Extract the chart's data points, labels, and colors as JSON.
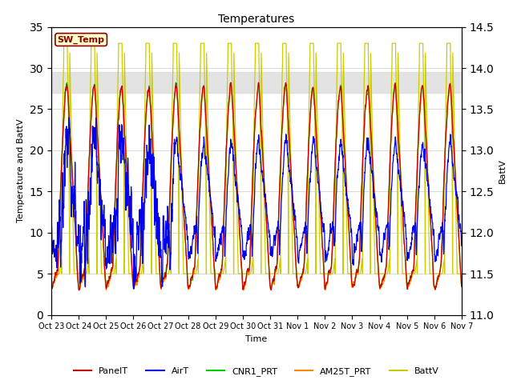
{
  "title": "Temperatures",
  "xlabel": "Time",
  "ylabel_left": "Temperature and BattV",
  "ylabel_right": "BattV",
  "ylim_left": [
    0,
    35
  ],
  "ylim_right": [
    11.0,
    14.5
  ],
  "xtick_labels": [
    "Oct 23",
    "Oct 24",
    "Oct 25",
    "Oct 26",
    "Oct 27",
    "Oct 28",
    "Oct 29",
    "Oct 30",
    "Oct 31",
    "Nov 1",
    "Nov 2",
    "Nov 3",
    "Nov 4",
    "Nov 5",
    "Nov 6",
    "Nov 7"
  ],
  "ytick_left": [
    0,
    5,
    10,
    15,
    20,
    25,
    30,
    35
  ],
  "ytick_right": [
    11.0,
    11.5,
    12.0,
    12.5,
    13.0,
    13.5,
    14.0,
    14.5
  ],
  "shaded_band": [
    27.0,
    29.5
  ],
  "sw_temp_label": "SW_Temp",
  "legend_entries": [
    "PanelT",
    "AirT",
    "CNR1_PRT",
    "AM25T_PRT",
    "BattV"
  ],
  "legend_colors": [
    "#cc0000",
    "#0000ee",
    "#00cc00",
    "#ff8800",
    "#cccc00"
  ],
  "line_colors": {
    "PanelT": "#cc0000",
    "AirT": "#0000ee",
    "CNR1_PRT": "#00cc00",
    "AM25T_PRT": "#ff8800",
    "BattV": "#cccc00"
  },
  "background_color": "#ffffff",
  "n_days": 15,
  "pts_per_day": 144
}
